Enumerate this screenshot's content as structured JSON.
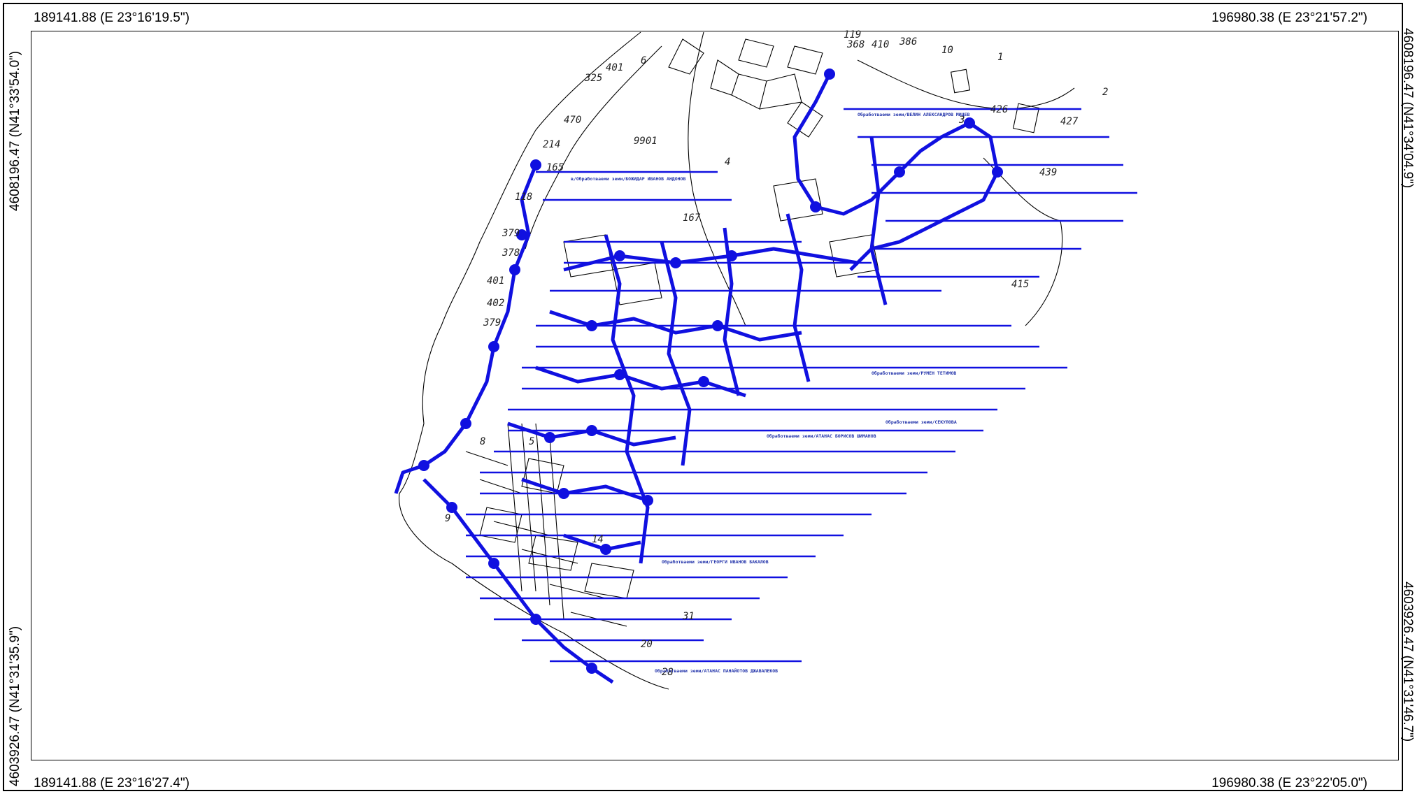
{
  "corners": {
    "top_left": "189141.88 (E 23°16'19.5\")",
    "top_right": "196980.38 (E 23°21'57.2\")",
    "bottom_left": "189141.88 (E 23°16'27.4\")",
    "bottom_right": "196980.38 (E 23°22'05.0\")"
  },
  "side_labels": {
    "left_top": "4608196.47 (N41°33'54.0\")",
    "left_bottom": "4603926.47 (N41°31'35.9\")",
    "right_top": "4608196.47 (N41°34'04.9\")",
    "right_bottom": "4603926.47 (N41°31'46.7\")"
  },
  "map": {
    "parcel_numbers": [
      "9901",
      "165",
      "167",
      "118",
      "379",
      "378",
      "401",
      "402",
      "379",
      "470",
      "214",
      "325",
      "401",
      "439",
      "427",
      "415",
      "426",
      "386",
      "368",
      "410",
      "119",
      "1",
      "2",
      "3",
      "4",
      "5",
      "6",
      "8",
      "9",
      "10",
      "14",
      "20",
      "28",
      "31"
    ],
    "owner_labels": [
      "в/Обработваеми земи/БОЖИДАР ИВАНОВ АНДОНОВ",
      "Обработваеми земи/ВЕЛИН АЛЕКСАНДРОВ МИЦЕВ",
      "Обработваеми земи/ГЕОРГИ ИВАНОВ БАКАЛОВ",
      "Обработваеми земи/АТАНАС ПАНАЙОТОВ ДЖАВАЛЕКОВ",
      "Обработваеми земи/РУМЕН ТЕТИМОВ",
      "Обработваеми земи/АТАНАС БОРИСОВ ШИМАНОВ",
      "Обработваеми земи/СЕКУЛОВА"
    ],
    "colors": {
      "overlay": "#1010e0",
      "base": "#000000"
    }
  }
}
